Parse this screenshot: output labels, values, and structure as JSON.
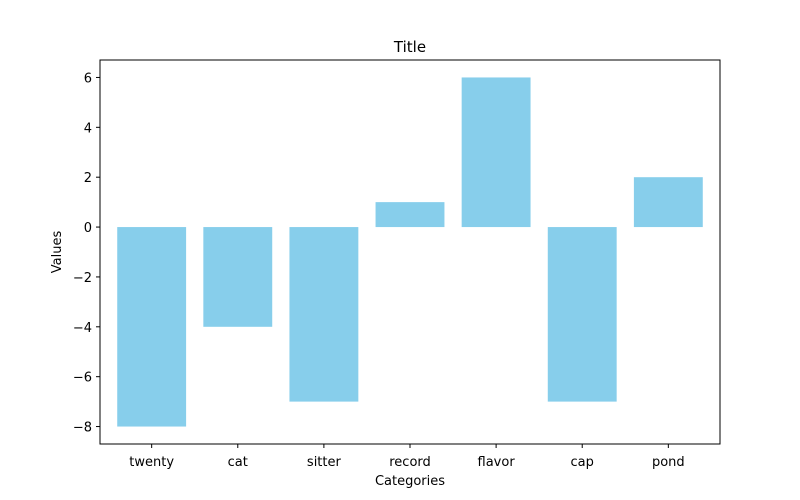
{
  "chart_data": {
    "type": "bar",
    "title": "Title",
    "xlabel": "Categories",
    "ylabel": "Values",
    "categories": [
      "twenty",
      "cat",
      "sitter",
      "record",
      "flavor",
      "cap",
      "pond"
    ],
    "values": [
      -8,
      -4,
      -7,
      1,
      6,
      -7,
      2
    ],
    "ylim": [
      -8.7,
      6.7
    ],
    "yticks": [
      -8,
      -6,
      -4,
      -2,
      0,
      2,
      4,
      6
    ],
    "ytick_labels": [
      "−8",
      "−6",
      "−4",
      "−2",
      "0",
      "2",
      "4",
      "6"
    ],
    "bar_color": "#87CEEB",
    "grid": false,
    "legend": "none"
  }
}
